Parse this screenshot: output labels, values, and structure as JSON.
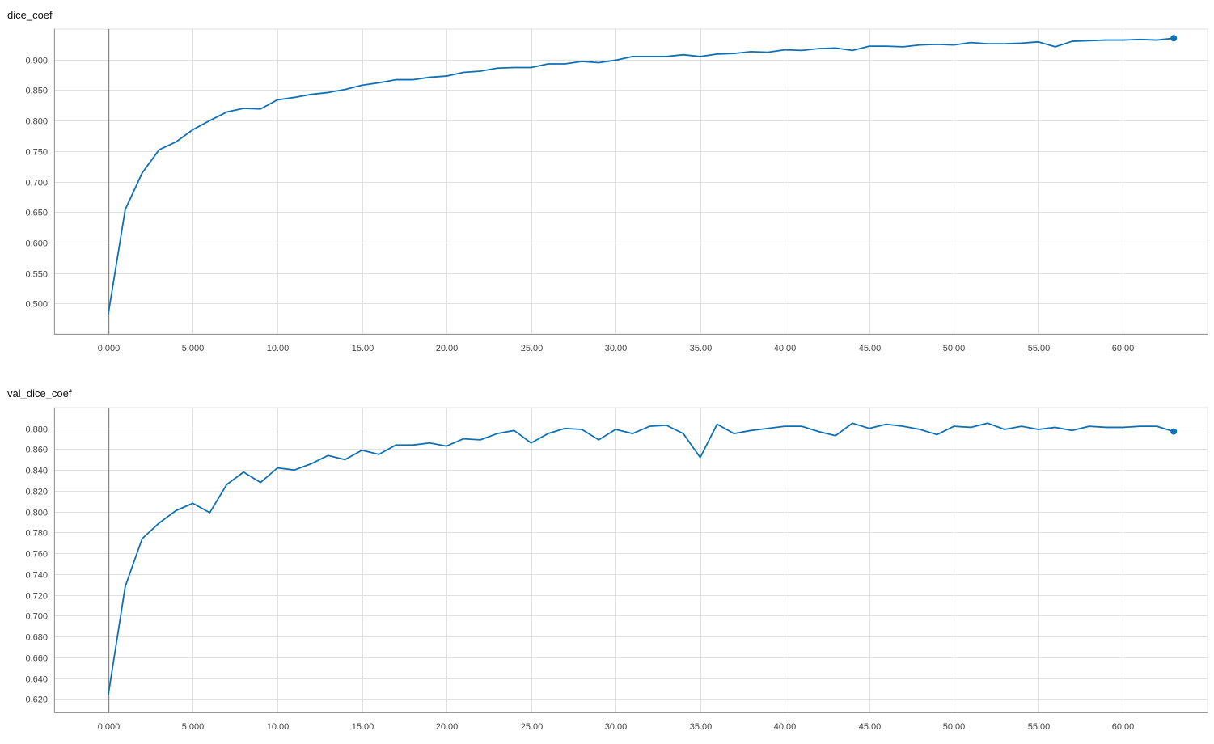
{
  "chart_data": [
    {
      "type": "line",
      "title": "dice_coef",
      "xlabel": "",
      "ylabel": "",
      "grid": true,
      "xlim": [
        -3.2,
        65
      ],
      "ylim": [
        0.45,
        0.95
      ],
      "x_ticks": [
        0,
        5,
        10,
        15,
        20,
        25,
        30,
        35,
        40,
        45,
        50,
        55,
        60
      ],
      "x_tick_labels": [
        "0.000",
        "5.000",
        "10.00",
        "15.00",
        "20.00",
        "25.00",
        "30.00",
        "35.00",
        "40.00",
        "45.00",
        "50.00",
        "55.00",
        "60.00"
      ],
      "y_ticks": [
        0.5,
        0.55,
        0.6,
        0.65,
        0.7,
        0.75,
        0.8,
        0.85,
        0.9
      ],
      "y_tick_labels": [
        "0.500",
        "0.550",
        "0.600",
        "0.650",
        "0.700",
        "0.750",
        "0.800",
        "0.850",
        "0.900"
      ],
      "x": [
        0,
        1,
        2,
        3,
        4,
        5,
        6,
        7,
        8,
        9,
        10,
        11,
        12,
        13,
        14,
        15,
        16,
        17,
        18,
        19,
        20,
        21,
        22,
        23,
        24,
        25,
        26,
        27,
        28,
        29,
        30,
        31,
        32,
        33,
        34,
        35,
        36,
        37,
        38,
        39,
        40,
        41,
        42,
        43,
        44,
        45,
        46,
        47,
        48,
        49,
        50,
        51,
        52,
        53,
        54,
        55,
        56,
        57,
        58,
        59,
        60,
        61,
        62,
        63
      ],
      "y": [
        0.483,
        0.654,
        0.714,
        0.752,
        0.765,
        0.785,
        0.8,
        0.814,
        0.82,
        0.819,
        0.834,
        0.838,
        0.843,
        0.846,
        0.851,
        0.858,
        0.862,
        0.867,
        0.867,
        0.871,
        0.873,
        0.879,
        0.881,
        0.886,
        0.887,
        0.887,
        0.893,
        0.893,
        0.897,
        0.895,
        0.899,
        0.905,
        0.905,
        0.905,
        0.908,
        0.905,
        0.909,
        0.91,
        0.913,
        0.912,
        0.916,
        0.915,
        0.918,
        0.919,
        0.915,
        0.922,
        0.922,
        0.921,
        0.924,
        0.925,
        0.924,
        0.928,
        0.926,
        0.926,
        0.927,
        0.929,
        0.921,
        0.93,
        0.931,
        0.932,
        0.932,
        0.933,
        0.932,
        0.935
      ],
      "color": "#0f71b5",
      "axis_color": "#999999",
      "grid_color": "#e0e0e0"
    },
    {
      "type": "line",
      "title": "val_dice_coef",
      "xlabel": "",
      "ylabel": "",
      "grid": true,
      "xlim": [
        -3.2,
        65
      ],
      "ylim": [
        0.607,
        0.9
      ],
      "x_ticks": [
        0,
        5,
        10,
        15,
        20,
        25,
        30,
        35,
        40,
        45,
        50,
        55,
        60
      ],
      "x_tick_labels": [
        "0.000",
        "5.000",
        "10.00",
        "15.00",
        "20.00",
        "25.00",
        "30.00",
        "35.00",
        "40.00",
        "45.00",
        "50.00",
        "55.00",
        "60.00"
      ],
      "y_ticks": [
        0.62,
        0.64,
        0.66,
        0.68,
        0.7,
        0.72,
        0.74,
        0.76,
        0.78,
        0.8,
        0.82,
        0.84,
        0.86,
        0.88
      ],
      "y_tick_labels": [
        "0.620",
        "0.640",
        "0.660",
        "0.680",
        "0.700",
        "0.720",
        "0.740",
        "0.760",
        "0.780",
        "0.800",
        "0.820",
        "0.840",
        "0.860",
        "0.880"
      ],
      "x": [
        0,
        1,
        2,
        3,
        4,
        5,
        6,
        7,
        8,
        9,
        10,
        11,
        12,
        13,
        14,
        15,
        16,
        17,
        18,
        19,
        20,
        21,
        22,
        23,
        24,
        25,
        26,
        27,
        28,
        29,
        30,
        31,
        32,
        33,
        34,
        35,
        36,
        37,
        38,
        39,
        40,
        41,
        42,
        43,
        44,
        45,
        46,
        47,
        48,
        49,
        50,
        51,
        52,
        53,
        54,
        55,
        56,
        57,
        58,
        59,
        60,
        61,
        62,
        63
      ],
      "y": [
        0.624,
        0.728,
        0.774,
        0.789,
        0.801,
        0.808,
        0.799,
        0.826,
        0.838,
        0.828,
        0.842,
        0.84,
        0.846,
        0.854,
        0.85,
        0.859,
        0.855,
        0.864,
        0.864,
        0.866,
        0.863,
        0.87,
        0.869,
        0.875,
        0.878,
        0.866,
        0.875,
        0.88,
        0.879,
        0.869,
        0.879,
        0.875,
        0.882,
        0.883,
        0.875,
        0.852,
        0.884,
        0.875,
        0.878,
        0.88,
        0.882,
        0.882,
        0.877,
        0.873,
        0.885,
        0.88,
        0.884,
        0.882,
        0.879,
        0.874,
        0.882,
        0.881,
        0.885,
        0.879,
        0.882,
        0.879,
        0.881,
        0.878,
        0.882,
        0.881,
        0.881,
        0.882,
        0.882,
        0.877
      ],
      "color": "#0f71b5",
      "axis_color": "#999999",
      "grid_color": "#e0e0e0"
    }
  ]
}
